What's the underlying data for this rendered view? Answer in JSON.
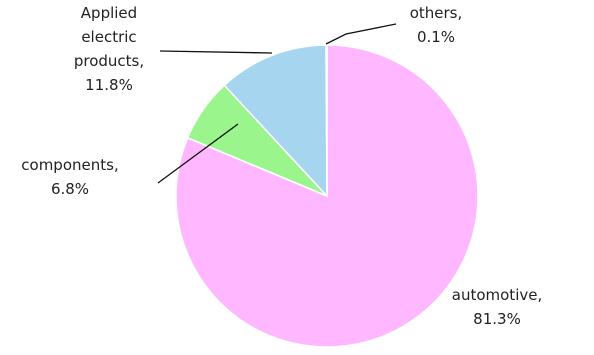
{
  "chart_data": {
    "type": "pie",
    "title": "",
    "start_angle_deg": 0,
    "direction": "clockwise",
    "slice_outline": "#ffffff",
    "slices": [
      {
        "name": "automotive",
        "label_lines": [
          "automotive,",
          "81.3%"
        ],
        "value": 81.3,
        "color": "#ffb8ff"
      },
      {
        "name": "components",
        "label_lines": [
          "components,",
          "6.8%"
        ],
        "value": 6.8,
        "color": "#99f58c"
      },
      {
        "name": "Applied electric products",
        "label_lines": [
          "Applied",
          "electric",
          "products,",
          "11.8%"
        ],
        "value": 11.8,
        "color": "#a6d5f0"
      },
      {
        "name": "others",
        "label_lines": [
          "others,",
          "0.1%"
        ],
        "value": 0.1,
        "color": "#e0e0e0"
      }
    ]
  }
}
